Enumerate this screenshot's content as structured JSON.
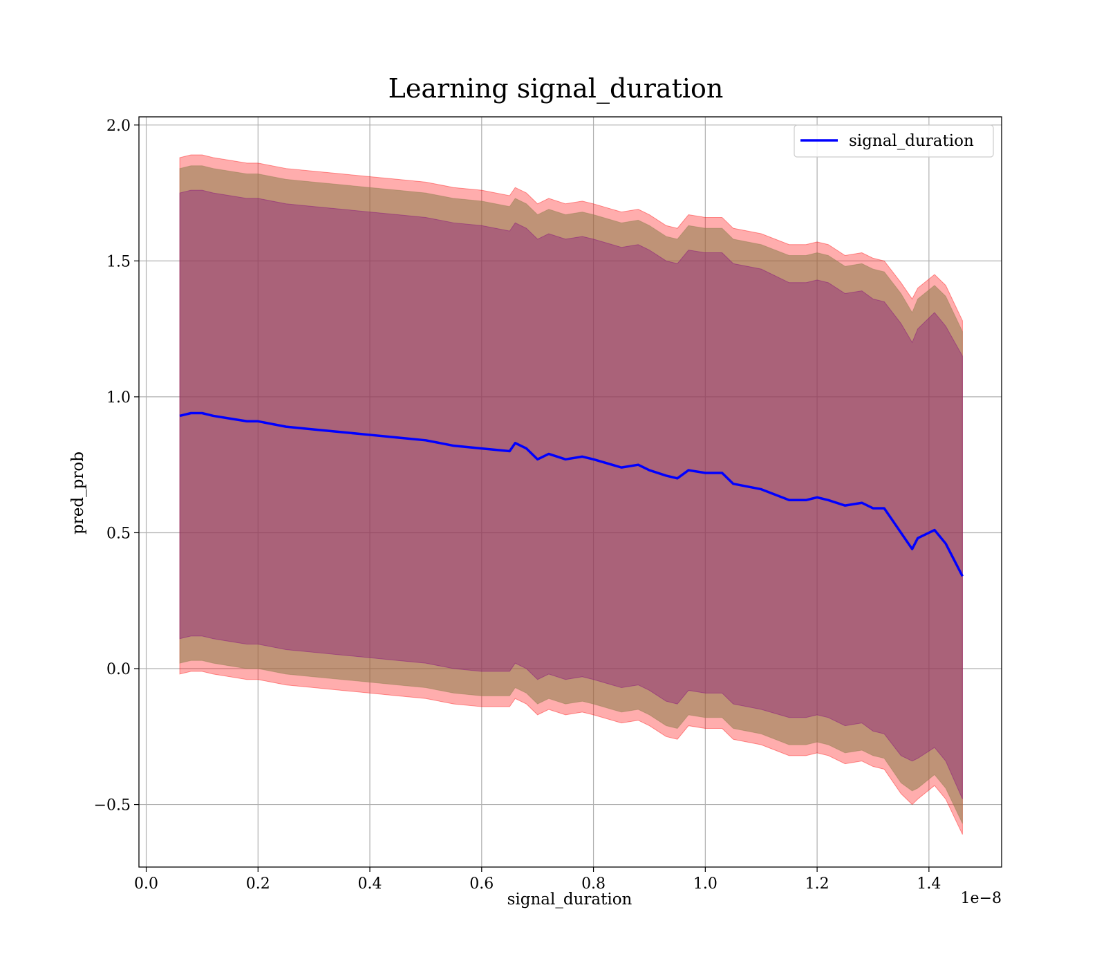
{
  "chart_data": {
    "type": "line",
    "title": "Learning signal_duration",
    "xlabel": "signal_duration",
    "ylabel": "pred_prob",
    "x_offset_label": "1e−8",
    "xlim": [
      -0.013,
      1.53
    ],
    "ylim": [
      -0.73,
      2.03
    ],
    "x_ticks": [
      0.0,
      0.2,
      0.4,
      0.6,
      0.8,
      1.0,
      1.2,
      1.4
    ],
    "x_tick_labels": [
      "0.0",
      "0.2",
      "0.4",
      "0.6",
      "0.8",
      "1.0",
      "1.2",
      "1.4"
    ],
    "y_ticks": [
      -0.5,
      0.0,
      0.5,
      1.0,
      1.5,
      2.0
    ],
    "y_tick_labels": [
      "−0.5",
      "0.0",
      "0.5",
      "1.0",
      "1.5",
      "2.0"
    ],
    "grid": true,
    "legend_position": "upper right",
    "colors": {
      "line": "#0000ff",
      "band_outer": "#ff0000",
      "band_mid": "#8b7d4a",
      "band_inner": "#800080"
    },
    "series": [
      {
        "name": "signal_duration",
        "x": [
          0.06,
          0.08,
          0.1,
          0.12,
          0.15,
          0.18,
          0.2,
          0.25,
          0.3,
          0.35,
          0.4,
          0.45,
          0.5,
          0.55,
          0.6,
          0.65,
          0.66,
          0.68,
          0.7,
          0.72,
          0.75,
          0.78,
          0.8,
          0.85,
          0.88,
          0.9,
          0.93,
          0.95,
          0.97,
          1.0,
          1.03,
          1.05,
          1.1,
          1.15,
          1.18,
          1.2,
          1.22,
          1.25,
          1.28,
          1.3,
          1.32,
          1.35,
          1.37,
          1.38,
          1.41,
          1.43,
          1.46
        ],
        "y": [
          0.93,
          0.94,
          0.94,
          0.93,
          0.92,
          0.91,
          0.91,
          0.89,
          0.88,
          0.87,
          0.86,
          0.85,
          0.84,
          0.82,
          0.81,
          0.8,
          0.83,
          0.81,
          0.77,
          0.79,
          0.77,
          0.78,
          0.77,
          0.74,
          0.75,
          0.73,
          0.71,
          0.7,
          0.73,
          0.72,
          0.72,
          0.68,
          0.66,
          0.62,
          0.62,
          0.63,
          0.62,
          0.6,
          0.61,
          0.59,
          0.59,
          0.5,
          0.44,
          0.48,
          0.51,
          0.46,
          0.34
        ]
      }
    ],
    "bands": [
      {
        "level": "outer",
        "x": [
          0.06,
          0.08,
          0.1,
          0.12,
          0.15,
          0.18,
          0.2,
          0.25,
          0.3,
          0.35,
          0.4,
          0.45,
          0.5,
          0.55,
          0.6,
          0.65,
          0.66,
          0.68,
          0.7,
          0.72,
          0.75,
          0.78,
          0.8,
          0.85,
          0.88,
          0.9,
          0.93,
          0.95,
          0.97,
          1.0,
          1.03,
          1.05,
          1.1,
          1.15,
          1.18,
          1.2,
          1.22,
          1.25,
          1.28,
          1.3,
          1.32,
          1.35,
          1.37,
          1.38,
          1.41,
          1.43,
          1.46
        ],
        "upper": [
          1.88,
          1.89,
          1.89,
          1.88,
          1.87,
          1.86,
          1.86,
          1.84,
          1.83,
          1.82,
          1.81,
          1.8,
          1.79,
          1.77,
          1.76,
          1.74,
          1.77,
          1.75,
          1.71,
          1.73,
          1.71,
          1.72,
          1.71,
          1.68,
          1.69,
          1.67,
          1.63,
          1.62,
          1.67,
          1.66,
          1.66,
          1.62,
          1.6,
          1.56,
          1.56,
          1.57,
          1.56,
          1.52,
          1.53,
          1.51,
          1.5,
          1.42,
          1.36,
          1.4,
          1.45,
          1.41,
          1.28
        ],
        "lower": [
          -0.02,
          -0.01,
          -0.01,
          -0.02,
          -0.03,
          -0.04,
          -0.04,
          -0.06,
          -0.07,
          -0.08,
          -0.09,
          -0.1,
          -0.11,
          -0.13,
          -0.14,
          -0.14,
          -0.11,
          -0.13,
          -0.17,
          -0.15,
          -0.17,
          -0.16,
          -0.17,
          -0.2,
          -0.19,
          -0.21,
          -0.25,
          -0.26,
          -0.21,
          -0.22,
          -0.22,
          -0.26,
          -0.28,
          -0.32,
          -0.32,
          -0.31,
          -0.32,
          -0.35,
          -0.34,
          -0.36,
          -0.37,
          -0.46,
          -0.5,
          -0.48,
          -0.43,
          -0.48,
          -0.61
        ]
      },
      {
        "level": "mid",
        "x": [
          0.06,
          0.08,
          0.1,
          0.12,
          0.15,
          0.18,
          0.2,
          0.25,
          0.3,
          0.35,
          0.4,
          0.45,
          0.5,
          0.55,
          0.6,
          0.65,
          0.66,
          0.68,
          0.7,
          0.72,
          0.75,
          0.78,
          0.8,
          0.85,
          0.88,
          0.9,
          0.93,
          0.95,
          0.97,
          1.0,
          1.03,
          1.05,
          1.1,
          1.15,
          1.18,
          1.2,
          1.22,
          1.25,
          1.28,
          1.3,
          1.32,
          1.35,
          1.37,
          1.38,
          1.41,
          1.43,
          1.46
        ],
        "upper": [
          1.84,
          1.85,
          1.85,
          1.84,
          1.83,
          1.82,
          1.82,
          1.8,
          1.79,
          1.78,
          1.77,
          1.76,
          1.75,
          1.73,
          1.72,
          1.7,
          1.73,
          1.71,
          1.67,
          1.69,
          1.67,
          1.68,
          1.67,
          1.64,
          1.65,
          1.63,
          1.59,
          1.58,
          1.63,
          1.62,
          1.62,
          1.58,
          1.56,
          1.52,
          1.52,
          1.53,
          1.52,
          1.48,
          1.49,
          1.47,
          1.46,
          1.38,
          1.31,
          1.36,
          1.41,
          1.37,
          1.24
        ],
        "lower": [
          0.02,
          0.03,
          0.03,
          0.02,
          0.01,
          0.0,
          0.0,
          -0.02,
          -0.03,
          -0.04,
          -0.05,
          -0.06,
          -0.07,
          -0.09,
          -0.1,
          -0.1,
          -0.07,
          -0.09,
          -0.13,
          -0.11,
          -0.13,
          -0.12,
          -0.13,
          -0.16,
          -0.15,
          -0.17,
          -0.21,
          -0.22,
          -0.17,
          -0.18,
          -0.18,
          -0.22,
          -0.24,
          -0.28,
          -0.28,
          -0.27,
          -0.28,
          -0.31,
          -0.3,
          -0.32,
          -0.33,
          -0.42,
          -0.45,
          -0.44,
          -0.39,
          -0.44,
          -0.57
        ]
      },
      {
        "level": "inner",
        "x": [
          0.06,
          0.08,
          0.1,
          0.12,
          0.15,
          0.18,
          0.2,
          0.25,
          0.3,
          0.35,
          0.4,
          0.45,
          0.5,
          0.55,
          0.6,
          0.65,
          0.66,
          0.68,
          0.7,
          0.72,
          0.75,
          0.78,
          0.8,
          0.85,
          0.88,
          0.9,
          0.93,
          0.95,
          0.97,
          1.0,
          1.03,
          1.05,
          1.1,
          1.15,
          1.18,
          1.2,
          1.22,
          1.25,
          1.28,
          1.3,
          1.32,
          1.35,
          1.37,
          1.38,
          1.41,
          1.43,
          1.46
        ],
        "upper": [
          1.75,
          1.76,
          1.76,
          1.75,
          1.74,
          1.73,
          1.73,
          1.71,
          1.7,
          1.69,
          1.68,
          1.67,
          1.66,
          1.64,
          1.63,
          1.61,
          1.64,
          1.62,
          1.58,
          1.6,
          1.58,
          1.59,
          1.58,
          1.55,
          1.56,
          1.54,
          1.5,
          1.49,
          1.54,
          1.53,
          1.53,
          1.49,
          1.47,
          1.42,
          1.42,
          1.43,
          1.42,
          1.38,
          1.39,
          1.36,
          1.35,
          1.27,
          1.2,
          1.25,
          1.31,
          1.26,
          1.15
        ],
        "lower": [
          0.11,
          0.12,
          0.12,
          0.11,
          0.1,
          0.09,
          0.09,
          0.07,
          0.06,
          0.05,
          0.04,
          0.03,
          0.02,
          0.0,
          -0.01,
          -0.01,
          0.02,
          0.0,
          -0.04,
          -0.02,
          -0.04,
          -0.03,
          -0.04,
          -0.07,
          -0.06,
          -0.08,
          -0.12,
          -0.13,
          -0.08,
          -0.09,
          -0.09,
          -0.13,
          -0.15,
          -0.18,
          -0.18,
          -0.17,
          -0.18,
          -0.21,
          -0.2,
          -0.23,
          -0.24,
          -0.32,
          -0.34,
          -0.33,
          -0.29,
          -0.34,
          -0.48
        ]
      }
    ]
  }
}
